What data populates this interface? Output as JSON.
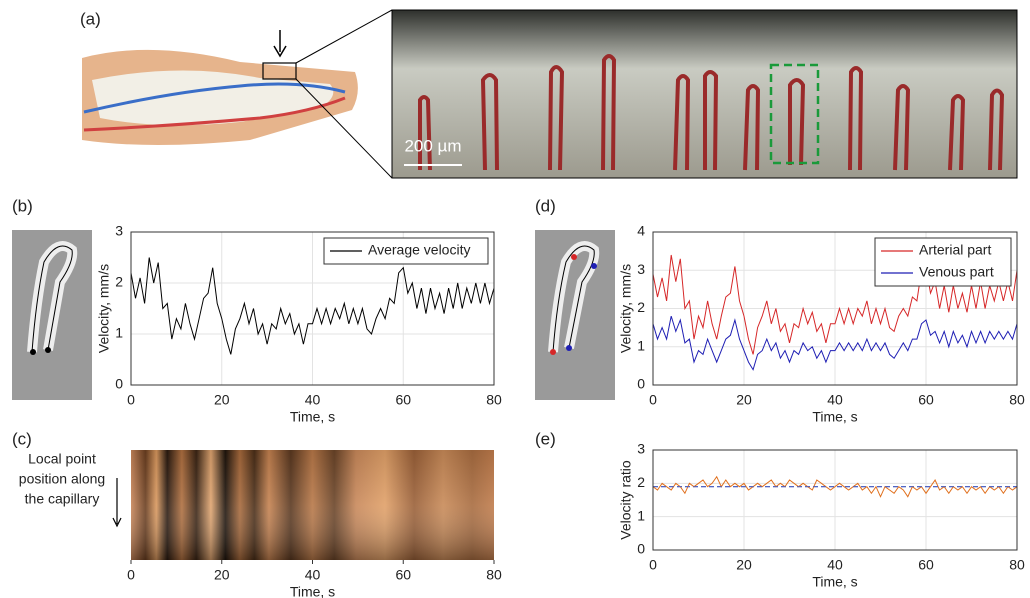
{
  "figure": {
    "labels": [
      "(a)",
      "(b)",
      "(c)",
      "(d)",
      "(e)"
    ],
    "scale_bar": "200 µm",
    "c_side_label": [
      "Local point",
      "position along",
      "the capillary"
    ]
  },
  "chart_data": [
    {
      "type": "line",
      "xlabel": "Time, s",
      "ylabel": "Velocity, mm/s",
      "legend": "upper right",
      "grid": true,
      "xlim": [
        0,
        80
      ],
      "ylim": [
        0,
        3
      ],
      "xticks": [
        0,
        20,
        40,
        60,
        80
      ],
      "yticks": [
        0,
        1,
        2,
        3
      ],
      "x": [
        0,
        1,
        2,
        3,
        4,
        5,
        6,
        7,
        8,
        9,
        10,
        11,
        12,
        13,
        14,
        15,
        16,
        17,
        18,
        19,
        20,
        21,
        22,
        23,
        24,
        25,
        26,
        27,
        28,
        29,
        30,
        31,
        32,
        33,
        34,
        35,
        36,
        37,
        38,
        39,
        40,
        41,
        42,
        43,
        44,
        45,
        46,
        47,
        48,
        49,
        50,
        51,
        52,
        53,
        54,
        55,
        56,
        57,
        58,
        59,
        60,
        61,
        62,
        63,
        64,
        65,
        66,
        67,
        68,
        69,
        70,
        71,
        72,
        73,
        74,
        75,
        76,
        77,
        78,
        79,
        80
      ],
      "series": [
        {
          "name": "Average velocity",
          "color": "#000000",
          "values": [
            2.2,
            1.7,
            2.1,
            1.6,
            2.5,
            2.0,
            2.4,
            1.5,
            1.6,
            0.9,
            1.3,
            1.1,
            1.6,
            1.2,
            0.9,
            1.3,
            1.7,
            1.8,
            2.3,
            1.6,
            1.3,
            0.9,
            0.6,
            1.1,
            1.3,
            1.6,
            1.2,
            1.5,
            1.0,
            1.2,
            0.8,
            1.2,
            1.1,
            1.5,
            1.2,
            1.4,
            1.0,
            1.2,
            0.8,
            1.2,
            1.2,
            1.5,
            1.2,
            1.5,
            1.2,
            1.5,
            1.3,
            1.6,
            1.2,
            1.5,
            1.2,
            1.5,
            1.1,
            1.0,
            1.3,
            1.5,
            1.3,
            1.7,
            1.6,
            2.2,
            2.3,
            1.8,
            2.0,
            1.5,
            1.9,
            1.4,
            1.9,
            1.5,
            1.8,
            1.4,
            1.9,
            1.5,
            2.0,
            1.5,
            1.9,
            1.6,
            2.0,
            1.6,
            2.0,
            1.6,
            1.9
          ]
        }
      ]
    },
    {
      "type": "kymograph",
      "xlabel": "Time, s",
      "xlim": [
        0,
        80
      ],
      "xticks": [
        0,
        20,
        40,
        60,
        80
      ]
    },
    {
      "type": "line",
      "xlabel": "Time, s",
      "ylabel": "Velocity, mm/s",
      "legend": "upper right",
      "grid": true,
      "xlim": [
        0,
        80
      ],
      "ylim": [
        0,
        4
      ],
      "xticks": [
        0,
        20,
        40,
        60,
        80
      ],
      "yticks": [
        0,
        1,
        2,
        3,
        4
      ],
      "x": [
        0,
        1,
        2,
        3,
        4,
        5,
        6,
        7,
        8,
        9,
        10,
        11,
        12,
        13,
        14,
        15,
        16,
        17,
        18,
        19,
        20,
        21,
        22,
        23,
        24,
        25,
        26,
        27,
        28,
        29,
        30,
        31,
        32,
        33,
        34,
        35,
        36,
        37,
        38,
        39,
        40,
        41,
        42,
        43,
        44,
        45,
        46,
        47,
        48,
        49,
        50,
        51,
        52,
        53,
        54,
        55,
        56,
        57,
        58,
        59,
        60,
        61,
        62,
        63,
        64,
        65,
        66,
        67,
        68,
        69,
        70,
        71,
        72,
        73,
        74,
        75,
        76,
        77,
        78,
        79,
        80
      ],
      "series": [
        {
          "name": "Arterial part",
          "color": "#d62728",
          "values": [
            2.9,
            2.3,
            2.8,
            2.2,
            3.4,
            2.7,
            3.3,
            2.0,
            2.2,
            1.2,
            1.8,
            1.5,
            2.2,
            1.6,
            1.2,
            1.8,
            2.3,
            2.4,
            3.1,
            2.2,
            1.8,
            1.2,
            0.8,
            1.5,
            1.8,
            2.2,
            1.6,
            2.0,
            1.4,
            1.6,
            1.1,
            1.6,
            1.5,
            2.0,
            1.6,
            1.9,
            1.4,
            1.6,
            1.1,
            1.6,
            1.6,
            2.0,
            1.6,
            2.0,
            1.6,
            2.0,
            1.8,
            2.2,
            1.6,
            2.0,
            1.6,
            2.0,
            1.5,
            1.4,
            1.8,
            2.0,
            1.8,
            2.3,
            2.2,
            3.0,
            3.1,
            2.4,
            2.7,
            2.0,
            2.6,
            1.9,
            2.6,
            2.0,
            2.4,
            1.9,
            2.6,
            2.0,
            2.7,
            2.0,
            2.6,
            2.2,
            2.7,
            2.2,
            2.7,
            2.2,
            3.0
          ]
        },
        {
          "name": "Venous part",
          "color": "#1f1fb4",
          "values": [
            1.6,
            1.2,
            1.5,
            1.2,
            1.8,
            1.4,
            1.7,
            1.1,
            1.2,
            0.6,
            0.9,
            0.8,
            1.2,
            0.9,
            0.6,
            0.9,
            1.2,
            1.3,
            1.7,
            1.2,
            0.9,
            0.6,
            0.4,
            0.8,
            0.9,
            1.2,
            0.9,
            1.1,
            0.7,
            0.9,
            0.6,
            0.9,
            0.8,
            1.1,
            0.9,
            1.0,
            0.7,
            0.9,
            0.6,
            0.9,
            0.9,
            1.1,
            0.9,
            1.1,
            0.9,
            1.1,
            0.9,
            1.2,
            0.9,
            1.1,
            0.9,
            1.1,
            0.8,
            0.7,
            0.9,
            1.1,
            0.9,
            1.2,
            1.2,
            1.6,
            1.7,
            1.3,
            1.4,
            1.1,
            1.4,
            1.0,
            1.4,
            1.1,
            1.3,
            1.0,
            1.4,
            1.1,
            1.4,
            1.1,
            1.4,
            1.2,
            1.4,
            1.2,
            1.4,
            1.2,
            1.6
          ]
        }
      ]
    },
    {
      "type": "line",
      "xlabel": "Time, s",
      "ylabel": "Velocity ratio",
      "grid": true,
      "xlim": [
        0,
        80
      ],
      "ylim": [
        0,
        3
      ],
      "xticks": [
        0,
        20,
        40,
        60,
        80
      ],
      "yticks": [
        0,
        1,
        2,
        3
      ],
      "reference_line": 1.9,
      "reference_color": "#4a5fc1",
      "x": [
        0,
        1,
        2,
        3,
        4,
        5,
        6,
        7,
        8,
        9,
        10,
        11,
        12,
        13,
        14,
        15,
        16,
        17,
        18,
        19,
        20,
        21,
        22,
        23,
        24,
        25,
        26,
        27,
        28,
        29,
        30,
        31,
        32,
        33,
        34,
        35,
        36,
        37,
        38,
        39,
        40,
        41,
        42,
        43,
        44,
        45,
        46,
        47,
        48,
        49,
        50,
        51,
        52,
        53,
        54,
        55,
        56,
        57,
        58,
        59,
        60,
        61,
        62,
        63,
        64,
        65,
        66,
        67,
        68,
        69,
        70,
        71,
        72,
        73,
        74,
        75,
        76,
        77,
        78,
        79,
        80
      ],
      "series": [
        {
          "color": "#e0701e",
          "values": [
            1.9,
            1.8,
            2.0,
            1.9,
            1.8,
            2.0,
            1.9,
            1.7,
            2.0,
            1.9,
            2.0,
            2.1,
            1.9,
            2.0,
            2.2,
            1.9,
            2.1,
            1.9,
            2.0,
            1.9,
            2.0,
            1.8,
            1.9,
            2.0,
            1.9,
            2.0,
            2.1,
            1.9,
            2.0,
            1.9,
            2.1,
            2.0,
            1.9,
            2.0,
            1.9,
            1.8,
            2.1,
            2.0,
            1.9,
            1.8,
            1.9,
            2.0,
            1.9,
            1.8,
            1.9,
            2.0,
            1.8,
            1.9,
            1.7,
            1.9,
            1.6,
            1.9,
            1.8,
            1.7,
            1.9,
            1.8,
            1.6,
            1.9,
            1.8,
            1.9,
            1.7,
            1.9,
            2.1,
            1.8,
            1.9,
            1.7,
            1.9,
            1.8,
            1.9,
            1.7,
            1.9,
            1.8,
            1.9,
            1.7,
            1.9,
            1.8,
            1.9,
            1.7,
            1.9,
            1.8,
            1.9
          ]
        }
      ]
    }
  ]
}
